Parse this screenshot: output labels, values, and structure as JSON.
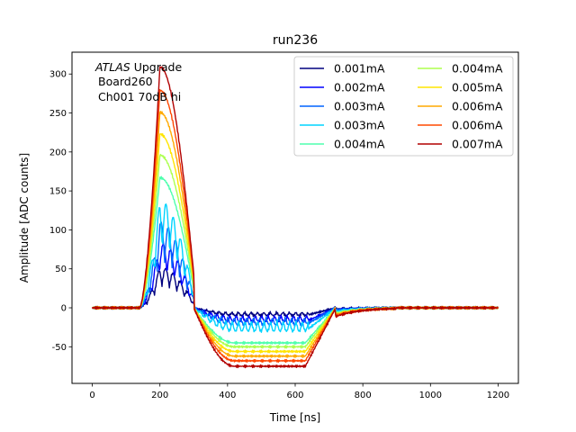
{
  "chart_data": {
    "type": "line",
    "title": "run236",
    "xlabel": "Time [ns]",
    "ylabel": "Amplitude [ADC counts]",
    "xlim": [
      -60,
      1260
    ],
    "ylim": [
      -97,
      328
    ],
    "xticks": [
      0,
      200,
      400,
      600,
      800,
      1000,
      1200
    ],
    "yticks": [
      -50,
      0,
      50,
      100,
      150,
      200,
      250,
      300
    ],
    "annotation": {
      "italic": "ATLAS",
      "rest": " Upgrade",
      "line2": "Board260",
      "line3": "Ch001 70dB hi"
    },
    "legend_position": "upper right",
    "series": [
      {
        "name": "0.001mA",
        "color": "#00007f",
        "peak": 52,
        "undershoot": 10,
        "saturated": true
      },
      {
        "name": "0.002mA",
        "color": "#0000ff",
        "peak": 83,
        "undershoot": 18,
        "saturated": true
      },
      {
        "name": "0.003mA",
        "color": "#0063ff",
        "peak": 110,
        "undershoot": 22,
        "saturated": true
      },
      {
        "name": "0.003mA",
        "color": "#00d4ff",
        "peak": 138,
        "undershoot": 30,
        "saturated": true
      },
      {
        "name": "0.004mA",
        "color": "#4effad",
        "peak": 167,
        "undershoot": 45,
        "saturated": false
      },
      {
        "name": "0.004mA",
        "color": "#adff4e",
        "peak": 196,
        "undershoot": 50,
        "saturated": false
      },
      {
        "name": "0.005mA",
        "color": "#ffe500",
        "peak": 223,
        "undershoot": 56,
        "saturated": false
      },
      {
        "name": "0.006mA",
        "color": "#ffa900",
        "peak": 251,
        "undershoot": 62,
        "saturated": false
      },
      {
        "name": "0.006mA",
        "color": "#ff4800",
        "peak": 279,
        "undershoot": 68,
        "saturated": false
      },
      {
        "name": "0.007mA",
        "color": "#b20000",
        "peak": 309,
        "undershoot": 75,
        "saturated": false
      }
    ]
  }
}
